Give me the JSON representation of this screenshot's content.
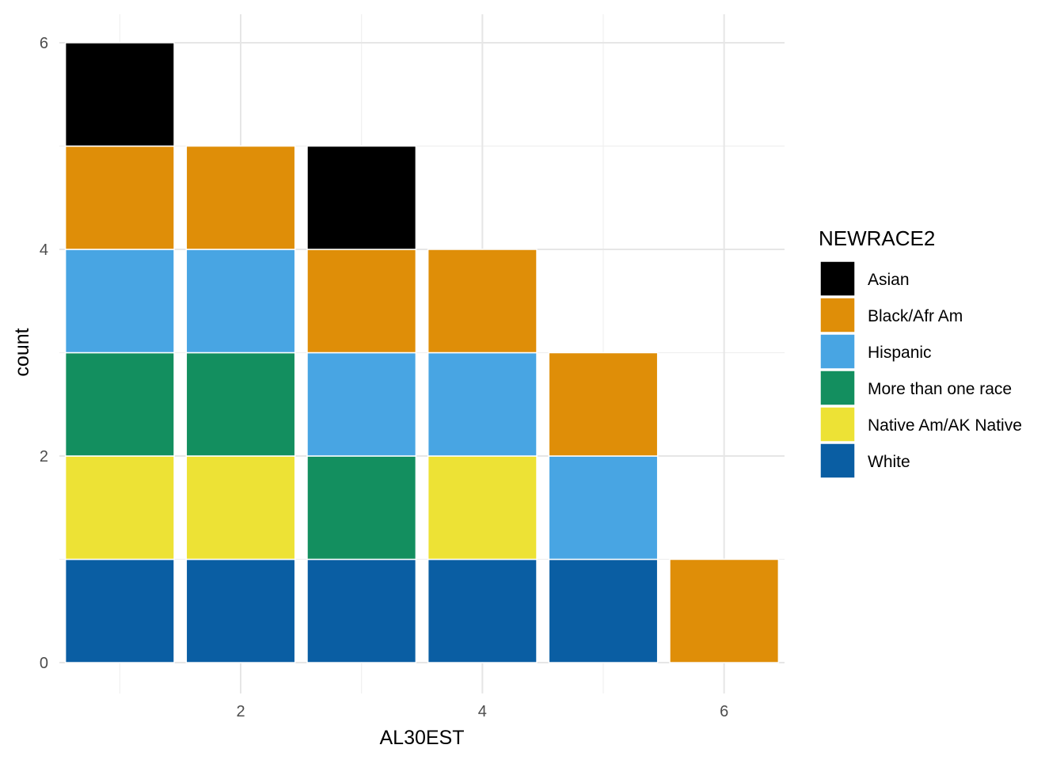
{
  "chart_data": {
    "type": "bar",
    "stacked": true,
    "xlabel": "AL30EST",
    "ylabel": "count",
    "xlim": [
      0.5,
      6.5
    ],
    "ylim": [
      0,
      6
    ],
    "x_ticks": [
      2,
      4,
      6
    ],
    "y_ticks": [
      0,
      2,
      4,
      6
    ],
    "grid": true,
    "legend": {
      "title": "NEWRACE2",
      "position": "right"
    },
    "x": [
      1,
      2,
      3,
      4,
      5,
      6
    ],
    "series": [
      {
        "name": "White",
        "color": "#0A5EA3",
        "values": [
          1,
          1,
          1,
          1,
          1,
          0
        ]
      },
      {
        "name": "Native Am/AK Native",
        "color": "#EDE235",
        "values": [
          1,
          1,
          0,
          1,
          0,
          0
        ]
      },
      {
        "name": "More than one race",
        "color": "#138F5F",
        "values": [
          1,
          1,
          1,
          0,
          0,
          0
        ]
      },
      {
        "name": "Hispanic",
        "color": "#48A5E3",
        "values": [
          1,
          1,
          1,
          1,
          1,
          0
        ]
      },
      {
        "name": "Black/Afr Am",
        "color": "#DF8E08",
        "values": [
          1,
          1,
          1,
          1,
          1,
          1
        ]
      },
      {
        "name": "Asian",
        "color": "#000000",
        "values": [
          1,
          0,
          1,
          0,
          0,
          0
        ]
      }
    ],
    "legend_order": [
      "Asian",
      "Black/Afr Am",
      "Hispanic",
      "More than one race",
      "Native Am/AK Native",
      "White"
    ]
  }
}
